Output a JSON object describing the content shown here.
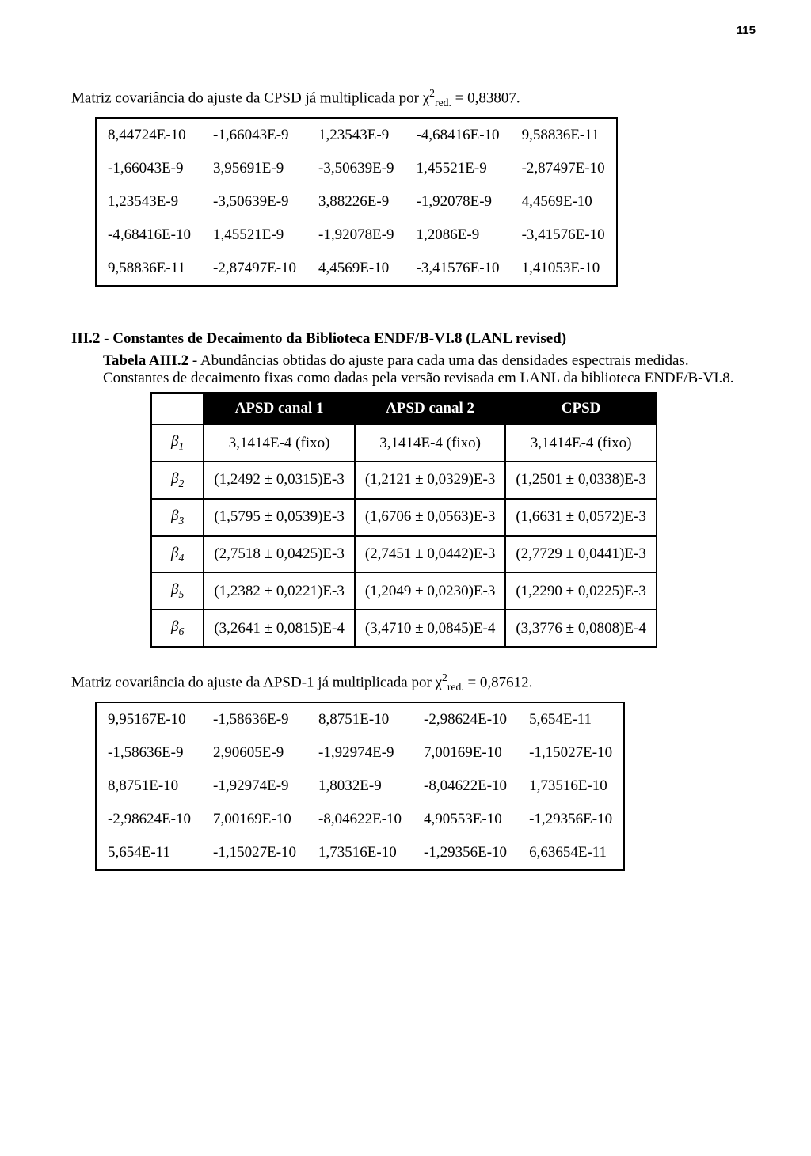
{
  "page_number": "115",
  "paragraph_a_prefix": "Matriz covariância do ajuste da CPSD já multiplicada por χ",
  "paragraph_a_sup": "2",
  "paragraph_a_sub": "red.",
  "paragraph_a_suffix": " = 0,83807.",
  "matrix_a": [
    [
      "8,44724E-10",
      "-1,66043E-9",
      "1,23543E-9",
      "-4,68416E-10",
      "9,58836E-11"
    ],
    [
      "-1,66043E-9",
      "3,95691E-9",
      "-3,50639E-9",
      "1,45521E-9",
      "-2,87497E-10"
    ],
    [
      "1,23543E-9",
      "-3,50639E-9",
      "3,88226E-9",
      "-1,92078E-9",
      "4,4569E-10"
    ],
    [
      "-4,68416E-10",
      "1,45521E-9",
      "-1,92078E-9",
      "1,2086E-9",
      "-3,41576E-10"
    ],
    [
      "9,58836E-11",
      "-2,87497E-10",
      "4,4569E-10",
      "-3,41576E-10",
      "1,41053E-10"
    ]
  ],
  "section_heading": "III.2 - Constantes de Decaimento da Biblioteca ENDF/B-VI.8 (LANL revised)",
  "table_caption_label": "Tabela AIII.2",
  "table_caption_text": " - Abundâncias obtidas do ajuste para cada uma das densidades espectrais medidas. Constantes de decaimento fixas como dadas pela versão revisada em LANL da biblioteca ENDF/B-VI.8.",
  "headers": [
    "APSD canal 1",
    "APSD canal 2",
    "CPSD"
  ],
  "beta_rows": [
    {
      "label": "β",
      "sub": "1",
      "c1": "3,1414E-4 (fixo)",
      "c2": "3,1414E-4 (fixo)",
      "c3": "3,1414E-4 (fixo)"
    },
    {
      "label": "β",
      "sub": "2",
      "c1": "(1,2492 ± 0,0315)E-3",
      "c2": "(1,2121 ± 0,0329)E-3",
      "c3": "(1,2501 ± 0,0338)E-3"
    },
    {
      "label": "β",
      "sub": "3",
      "c1": "(1,5795 ± 0,0539)E-3",
      "c2": "(1,6706 ± 0,0563)E-3",
      "c3": "(1,6631 ± 0,0572)E-3"
    },
    {
      "label": "β",
      "sub": "4",
      "c1": "(2,7518 ± 0,0425)E-3",
      "c2": "(2,7451 ± 0,0442)E-3",
      "c3": "(2,7729 ± 0,0441)E-3"
    },
    {
      "label": "β",
      "sub": "5",
      "c1": "(1,2382 ± 0,0221)E-3",
      "c2": "(1,2049 ± 0,0230)E-3",
      "c3": "(1,2290 ± 0,0225)E-3"
    },
    {
      "label": "β",
      "sub": "6",
      "c1": "(3,2641 ± 0,0815)E-4",
      "c2": "(3,4710 ± 0,0845)E-4",
      "c3": "(3,3776 ± 0,0808)E-4"
    }
  ],
  "paragraph_b_prefix": "Matriz covariância do ajuste da APSD-1 já multiplicada por χ",
  "paragraph_b_sup": "2",
  "paragraph_b_sub": "red.",
  "paragraph_b_suffix": " = 0,87612.",
  "matrix_b": [
    [
      "9,95167E-10",
      "-1,58636E-9",
      "8,8751E-10",
      "-2,98624E-10",
      "5,654E-11"
    ],
    [
      "-1,58636E-9",
      "2,90605E-9",
      "-1,92974E-9",
      "7,00169E-10",
      "-1,15027E-10"
    ],
    [
      "8,8751E-10",
      "-1,92974E-9",
      "1,8032E-9",
      "-8,04622E-10",
      "1,73516E-10"
    ],
    [
      "-2,98624E-10",
      "7,00169E-10",
      "-8,04622E-10",
      "4,90553E-10",
      "-1,29356E-10"
    ],
    [
      "5,654E-11",
      "-1,15027E-10",
      "1,73516E-10",
      "-1,29356E-10",
      "6,63654E-11"
    ]
  ]
}
